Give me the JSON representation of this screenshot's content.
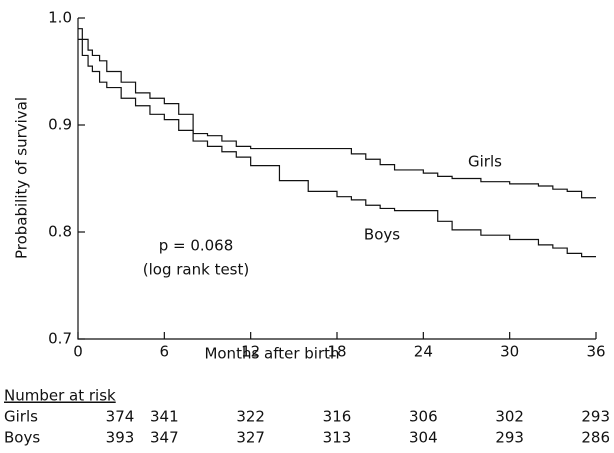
{
  "chart_data": {
    "type": "step",
    "xlabel": "Months after birth",
    "ylabel": "Probability of survival",
    "xlim": [
      0,
      36
    ],
    "xticks": [
      0,
      6,
      12,
      18,
      24,
      30,
      36
    ],
    "ylim": [
      0.7,
      1.0
    ],
    "yticks": [
      0.7,
      0.8,
      0.9,
      {
        "value": 1.0,
        "label": "1.0"
      }
    ],
    "x": [
      0,
      0.3,
      0.7,
      1,
      1.5,
      2,
      3,
      4,
      5,
      6,
      7,
      8,
      9,
      10,
      11,
      12,
      14,
      16,
      18,
      19,
      20,
      21,
      22,
      24,
      25,
      26,
      28,
      30,
      32,
      33,
      34,
      35,
      36
    ],
    "series": [
      {
        "name": "Girls",
        "color": "#111111",
        "values": [
          0.99,
          0.98,
          0.97,
          0.965,
          0.96,
          0.95,
          0.94,
          0.93,
          0.925,
          0.92,
          0.91,
          0.892,
          0.89,
          0.885,
          0.88,
          0.878,
          0.878,
          0.878,
          0.878,
          0.873,
          0.868,
          0.863,
          0.858,
          0.855,
          0.852,
          0.85,
          0.847,
          0.845,
          0.843,
          0.84,
          0.838,
          0.832,
          0.832
        ]
      },
      {
        "name": "Boys",
        "color": "#111111",
        "values": [
          0.98,
          0.965,
          0.955,
          0.95,
          0.94,
          0.935,
          0.925,
          0.918,
          0.91,
          0.905,
          0.895,
          0.885,
          0.88,
          0.875,
          0.87,
          0.862,
          0.848,
          0.838,
          0.833,
          0.83,
          0.825,
          0.822,
          0.82,
          0.82,
          0.81,
          0.802,
          0.797,
          0.793,
          0.788,
          0.785,
          0.78,
          0.777,
          0.777
        ]
      }
    ],
    "annotations": [
      "p = 0.068",
      "(log rank test)"
    ],
    "risk_table": {
      "title": "Number at risk",
      "rows": [
        {
          "name": "Girls",
          "values": [
            374,
            341,
            322,
            316,
            306,
            302,
            293
          ]
        },
        {
          "name": "Boys",
          "values": [
            393,
            347,
            327,
            313,
            304,
            293,
            286
          ]
        }
      ]
    }
  }
}
